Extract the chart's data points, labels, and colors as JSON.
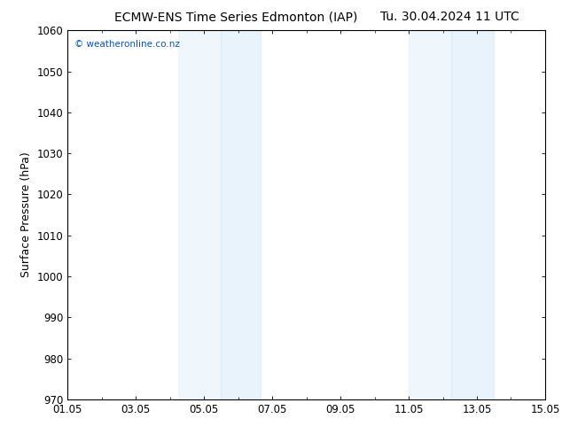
{
  "title_left": "ECMW-ENS Time Series Edmonton (IAP)",
  "title_right": "Tu. 30.04.2024 11 UTC",
  "ylabel": "Surface Pressure (hPa)",
  "ylim": [
    970,
    1060
  ],
  "yticks": [
    970,
    980,
    990,
    1000,
    1010,
    1020,
    1030,
    1040,
    1050,
    1060
  ],
  "xlim_start": 0,
  "xlim_end": 14,
  "xtick_labels": [
    "01.05",
    "03.05",
    "05.05",
    "07.05",
    "09.05",
    "11.05",
    "13.05",
    "15.05"
  ],
  "xtick_positions": [
    0,
    2,
    4,
    6,
    8,
    10,
    12,
    14
  ],
  "shaded_regions": [
    {
      "xmin": 3.2,
      "xmax": 4.5
    },
    {
      "xmin": 4.5,
      "xmax": 5.6
    },
    {
      "xmin": 10.0,
      "xmax": 11.2
    },
    {
      "xmin": 11.2,
      "xmax": 12.4
    }
  ],
  "watermark_text": "© weatheronline.co.nz",
  "watermark_color": "#0055cc",
  "bg_color": "#ffffff",
  "plot_bg_color": "#ffffff",
  "title_fontsize": 10,
  "axis_label_fontsize": 9,
  "tick_fontsize": 8.5,
  "shade_color": "#d6eaf8",
  "shade_alpha": 0.7
}
